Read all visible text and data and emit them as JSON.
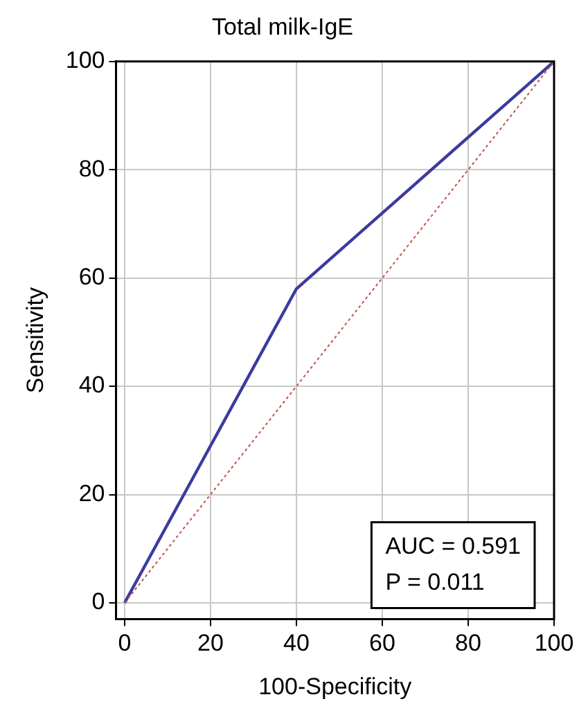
{
  "chart_data": {
    "type": "line",
    "title": "Total milk-IgE",
    "xlabel": "100-Specificity",
    "ylabel": "Sensitivity",
    "series": [
      {
        "color": "#3b3b9e",
        "x": [
          0,
          40,
          100
        ],
        "values": [
          0,
          58,
          100
        ],
        "line_style": "solid"
      },
      {
        "color": "#c0504d",
        "x": [
          0,
          100
        ],
        "values": [
          0,
          100
        ],
        "line_style": "dotted"
      }
    ],
    "xlim": [
      -2,
      100
    ],
    "xticks": [
      0,
      20,
      40,
      60,
      80,
      100
    ],
    "ylim": [
      -3,
      100
    ],
    "yticks": [
      0,
      20,
      40,
      60,
      80,
      100
    ],
    "grid": true,
    "legend": false,
    "marker": "none",
    "annotations": [
      "AUC = 0.591",
      "P = 0.011"
    ]
  }
}
